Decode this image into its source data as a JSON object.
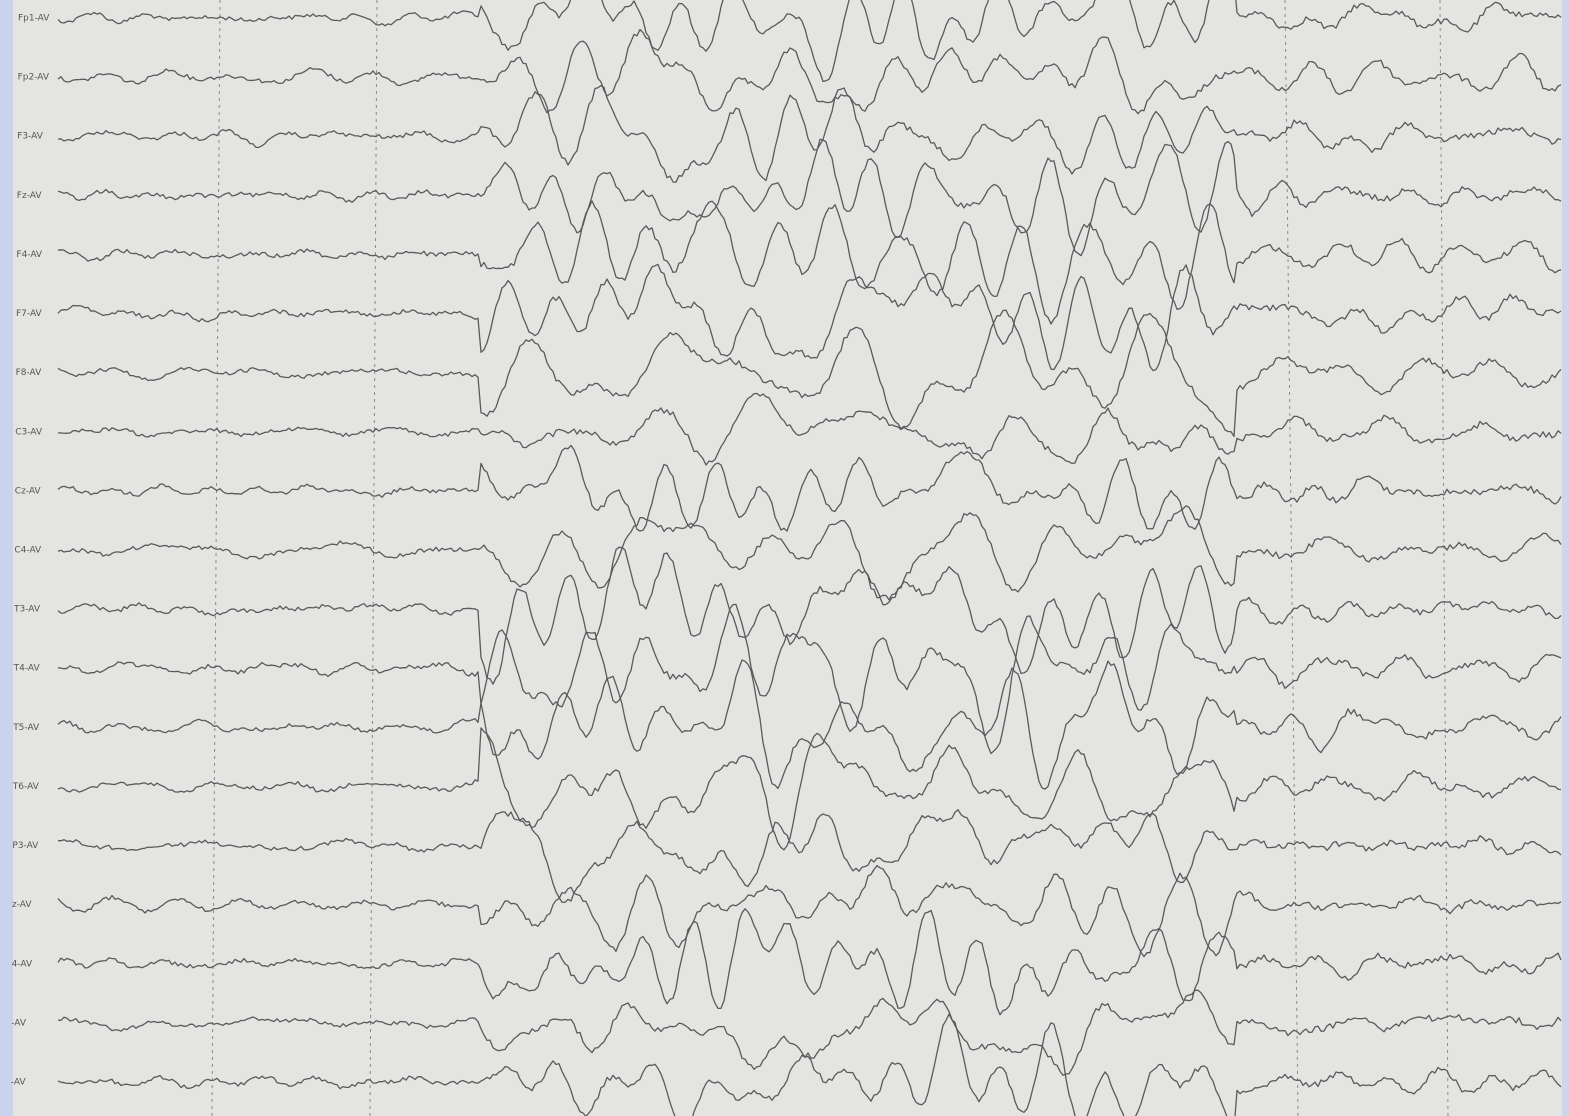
{
  "eeg": {
    "channels": [
      "Fp1-AV",
      "Fp2-AV",
      "F3-AV",
      "Fz-AV",
      "F4-AV",
      "F7-AV",
      "F8-AV",
      "C3-AV",
      "Cz-AV",
      "C4-AV",
      "T3-AV",
      "T4-AV",
      "T5-AV",
      "T6-AV",
      "P3-AV",
      "z-AV",
      "4-AV",
      "-AV",
      "-AV"
    ]
  }
}
